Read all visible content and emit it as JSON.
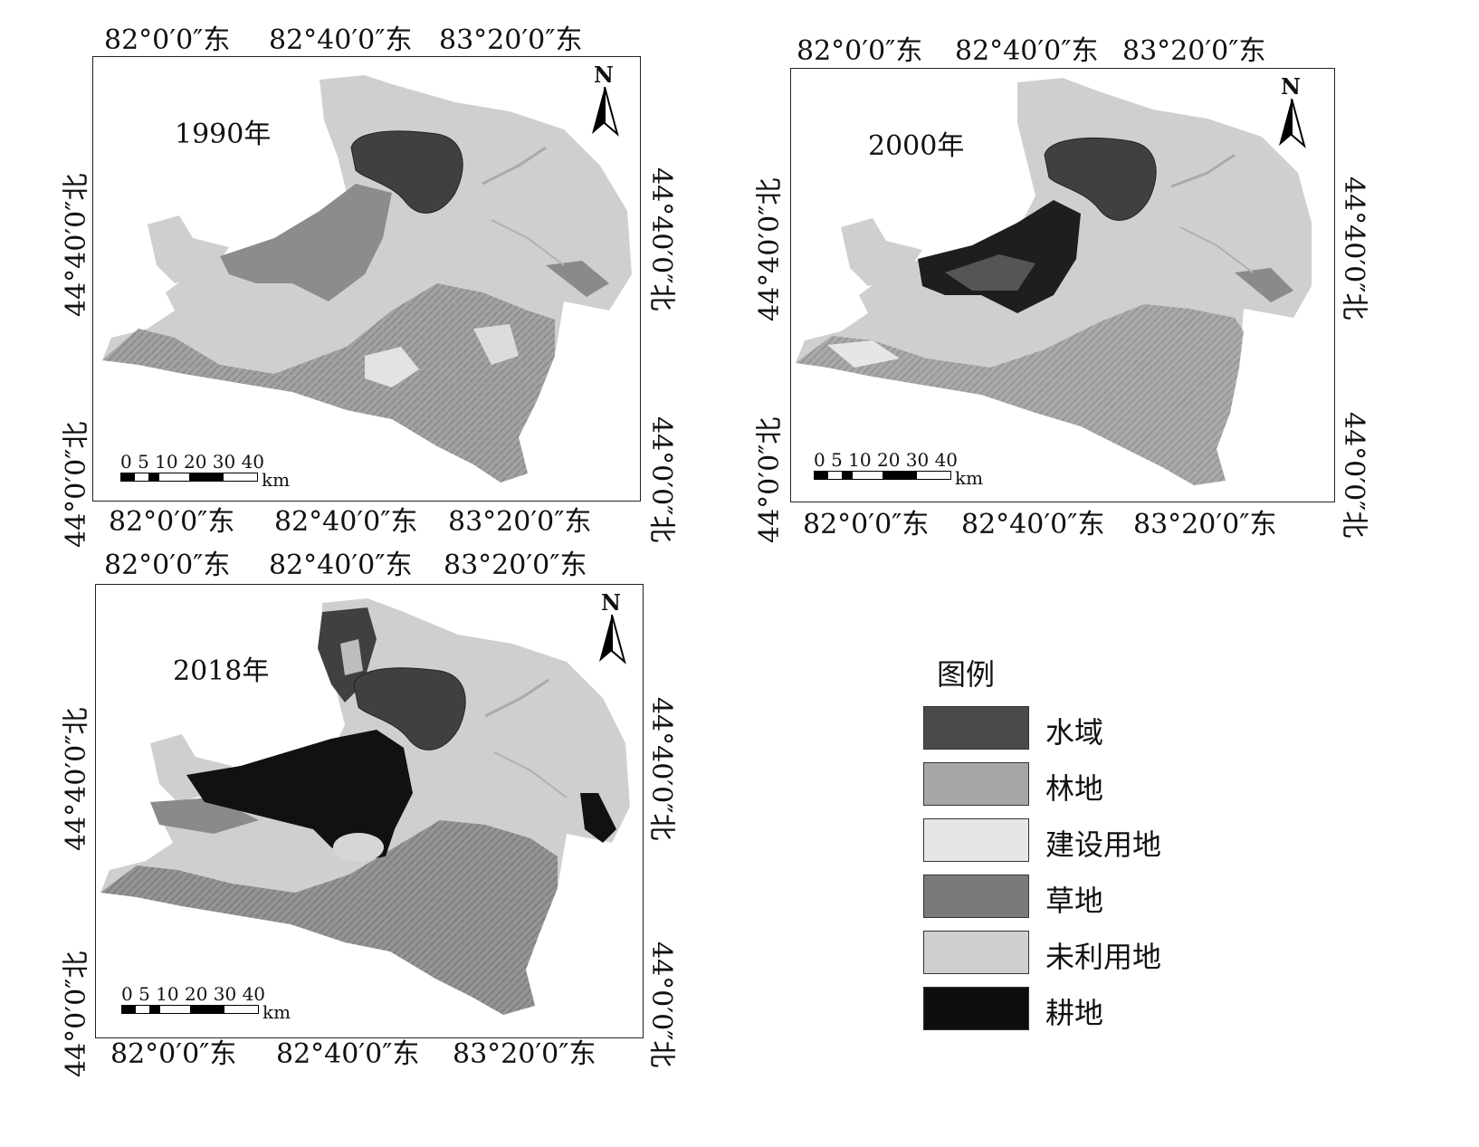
{
  "maps": [
    {
      "year_label": "1990年",
      "top_lon": [
        "82°0′0″东",
        "82°40′0″东",
        "83°20′0″东"
      ],
      "bottom_lon": [
        "82°0′0″东",
        "82°40′0″东",
        "83°20′0″东"
      ],
      "left_lat": [
        "44°40′0″北",
        "44°0′0″北"
      ],
      "right_lat": [
        "44°40′0″北",
        "44°0′0″北"
      ]
    },
    {
      "year_label": "2000年",
      "top_lon": [
        "82°0′0″东",
        "82°40′0″东",
        "83°20′0″东"
      ],
      "bottom_lon": [
        "82°0′0″东",
        "82°40′0″东",
        "83°20′0″东"
      ],
      "left_lat": [
        "44°40′0″北",
        "44°0′0″北"
      ],
      "right_lat": [
        "44°40′0″北",
        "44°0′0″北"
      ]
    },
    {
      "year_label": "2018年",
      "top_lon": [
        "82°0′0″东",
        "82°40′0″东",
        "83°20′0″东"
      ],
      "bottom_lon": [
        "82°0′0″东",
        "82°40′0″东",
        "83°20′0″东"
      ],
      "left_lat": [
        "44°40′0″北",
        "44°0′0″北"
      ],
      "right_lat": [
        "44°40′0″北",
        "44°0′0″北"
      ]
    }
  ],
  "north_arrow": "N",
  "scale_bar": {
    "numbers": "0 5 10 20   30  40",
    "unit": "km"
  },
  "legend": {
    "title": "图例",
    "items": [
      {
        "label": "水域",
        "color": "#4a4a4a"
      },
      {
        "label": "林地",
        "color": "#a6a6a6"
      },
      {
        "label": "建设用地",
        "color": "#e6e6e6"
      },
      {
        "label": "草地",
        "color": "#7a7a7a"
      },
      {
        "label": "未利用地",
        "color": "#cfcfcf"
      },
      {
        "label": "耕地",
        "color": "#0d0d0d"
      }
    ]
  },
  "colors": {
    "unused_land": "#cfcfcf",
    "water": "#404040",
    "grass": "#8a8a8a",
    "forest": "#a6a6a6",
    "farmland": "#111111",
    "built": "#e6e6e6"
  }
}
